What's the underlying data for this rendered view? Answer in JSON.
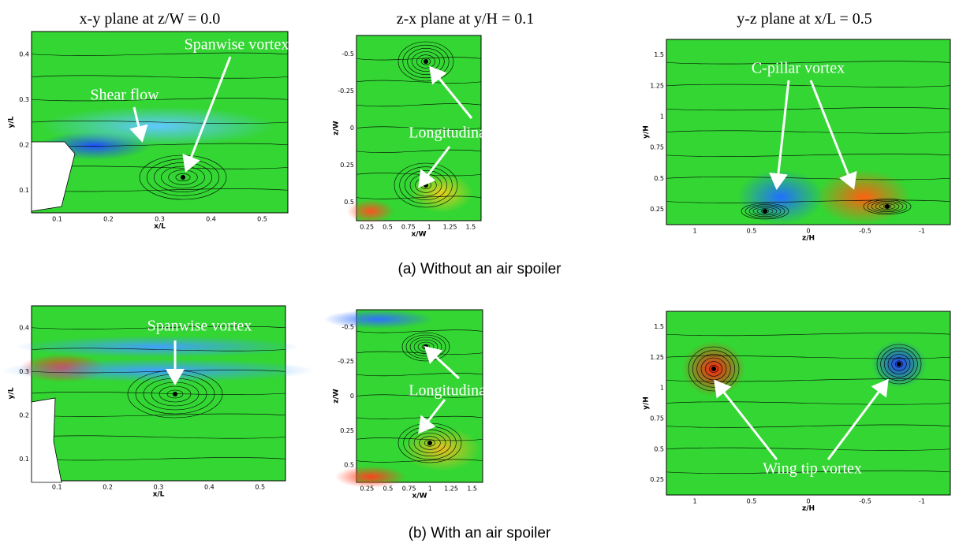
{
  "column_titles": [
    "x-y plane at z/W = 0.0",
    "z-x plane at y/H = 0.1",
    "y-z plane at x/L = 0.5"
  ],
  "rows": [
    {
      "caption": "(a) Without an air spoiler",
      "panels": [
        {
          "annotations": [
            "Spanwise vortex",
            "Shear flow"
          ],
          "x_label": "x/L",
          "y_label": "y/L",
          "x_ticks": [
            "0.1",
            "0.2",
            "0.3",
            "0.4",
            "0.5"
          ],
          "y_ticks": [
            "0.1",
            "0.2",
            "0.3",
            "0.4"
          ]
        },
        {
          "annotations": [
            "Longitudinal vortex"
          ],
          "x_label": "x/W",
          "y_label": "z/W",
          "x_ticks": [
            "0.25",
            "0.5",
            "0.75",
            "1",
            "1.25",
            "1.5"
          ],
          "y_ticks": [
            "0.5",
            "0.25",
            "0",
            "-0.25",
            "-0.5"
          ]
        },
        {
          "annotations": [
            "C-pillar vortex"
          ],
          "x_label": "z/H",
          "y_label": "y/H",
          "x_ticks": [
            "1",
            "0.5",
            "0",
            "-0.5",
            "-1"
          ],
          "y_ticks": [
            "0.25",
            "0.5",
            "0.75",
            "1",
            "1.25",
            "1.5"
          ]
        }
      ]
    },
    {
      "caption": "(b) With an air spoiler",
      "panels": [
        {
          "annotations": [
            "Spanwise vortex"
          ],
          "x_label": "x/L",
          "y_label": "y/L",
          "x_ticks": [
            "0.1",
            "0.2",
            "0.3",
            "0.4",
            "0.5"
          ],
          "y_ticks": [
            "0.1",
            "0.2",
            "0.3",
            "0.4"
          ]
        },
        {
          "annotations": [
            "Longitudinal vortex"
          ],
          "x_label": "x/W",
          "y_label": "z/W",
          "x_ticks": [
            "0.25",
            "0.5",
            "0.75",
            "1",
            "1.25",
            "1.5"
          ],
          "y_ticks": [
            "0.5",
            "0.25",
            "0",
            "-0.25",
            "-0.5"
          ]
        },
        {
          "annotations": [
            "Wing tip vortex"
          ],
          "x_label": "z/H",
          "y_label": "y/H",
          "x_ticks": [
            "1",
            "0.5",
            "0",
            "-0.5",
            "-1"
          ],
          "y_ticks": [
            "0.25",
            "0.5",
            "0.75",
            "1",
            "1.25",
            "1.5"
          ]
        }
      ]
    }
  ]
}
